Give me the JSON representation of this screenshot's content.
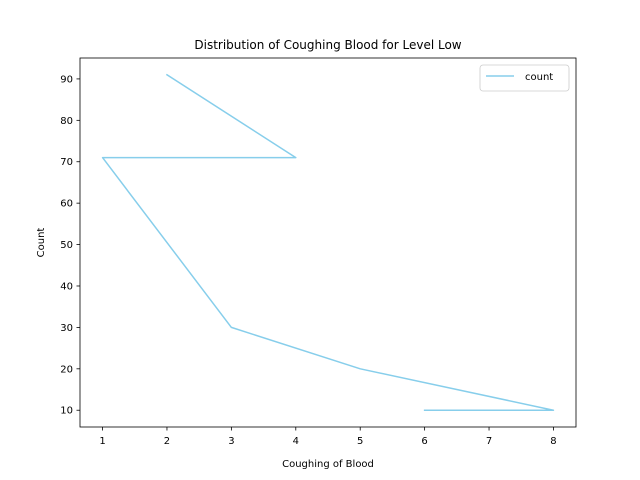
{
  "chart_data": {
    "type": "line",
    "title": "Distribution of Coughing Blood for Level Low",
    "xlabel": "Coughing of Blood",
    "ylabel": "Count",
    "xlim": [
      0.65,
      8.35
    ],
    "ylim": [
      5.95,
      95.05
    ],
    "xticks": [
      1,
      2,
      3,
      4,
      5,
      6,
      7,
      8
    ],
    "yticks": [
      10,
      20,
      30,
      40,
      50,
      60,
      70,
      80,
      90
    ],
    "grid": false,
    "legend_position": "top-right",
    "series": [
      {
        "name": "count",
        "color": "#87ceeb",
        "x": [
          2,
          4,
          1,
          3,
          5,
          8,
          6
        ],
        "y": [
          91,
          71,
          71,
          30,
          20,
          10,
          10
        ]
      }
    ]
  }
}
